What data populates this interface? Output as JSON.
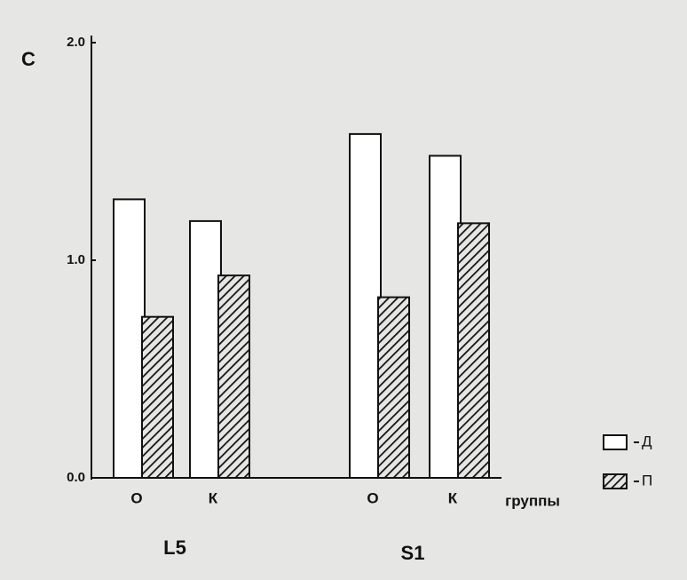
{
  "chart_data": {
    "type": "bar",
    "y_label": "C",
    "x_label": "группы",
    "categories": [
      "О",
      "К",
      "О",
      "К"
    ],
    "groups": [
      "L5",
      "S1"
    ],
    "series": [
      {
        "name": "Д",
        "color": "#ffffff",
        "values": [
          1.28,
          1.18,
          1.58,
          1.48
        ]
      },
      {
        "name": "П",
        "color": "hatched",
        "values": [
          0.74,
          0.93,
          0.83,
          1.17
        ]
      }
    ],
    "ylim": [
      0,
      2
    ],
    "yticks": [
      {
        "value": 0,
        "label": "0.0"
      },
      {
        "value": 1,
        "label": "1.0"
      },
      {
        "value": 2,
        "label": "2.0"
      }
    ]
  }
}
